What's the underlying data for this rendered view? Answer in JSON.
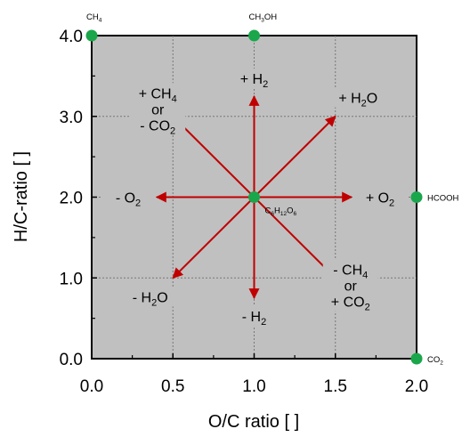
{
  "chart_data": {
    "type": "scatter",
    "xlabel": "O/C ratio  [   ]",
    "ylabel": "H/C-ratio  [   ]",
    "xlim": [
      0.0,
      2.0
    ],
    "ylim": [
      0.0,
      4.0
    ],
    "xticks": [
      "0.0",
      "0.5",
      "1.0",
      "1.5",
      "2.0"
    ],
    "yticks": [
      "0.0",
      "1.0",
      "2.0",
      "3.0",
      "4.0"
    ],
    "grid": true,
    "background": "#c0c0c0",
    "point_color": "#1aa64b",
    "arrow_color": "#c00000",
    "points": [
      {
        "label": "CH4",
        "x": 0.0,
        "y": 4.0
      },
      {
        "label": "CH3OH",
        "x": 1.0,
        "y": 4.0
      },
      {
        "label": "HCOOH",
        "x": 2.0,
        "y": 2.0
      },
      {
        "label": "CO2",
        "x": 2.0,
        "y": 0.0
      },
      {
        "label": "C6H12O6",
        "x": 1.0,
        "y": 2.0
      }
    ],
    "arrows": [
      {
        "label": [
          "+ H2"
        ],
        "from": [
          1.0,
          2.0
        ],
        "to": [
          1.0,
          3.25
        ]
      },
      {
        "label": [
          "- H2"
        ],
        "from": [
          1.0,
          2.0
        ],
        "to": [
          1.0,
          0.75
        ]
      },
      {
        "label": [
          "+ O2"
        ],
        "from": [
          1.0,
          2.0
        ],
        "to": [
          1.6,
          2.0
        ]
      },
      {
        "label": [
          "- O2"
        ],
        "from": [
          1.0,
          2.0
        ],
        "to": [
          0.4,
          2.0
        ]
      },
      {
        "label": [
          "+ H2O"
        ],
        "from": [
          1.0,
          2.0
        ],
        "to": [
          1.5,
          3.0
        ]
      },
      {
        "label": [
          "- H2O"
        ],
        "from": [
          1.0,
          2.0
        ],
        "to": [
          0.5,
          1.0
        ]
      },
      {
        "label": [
          "+ CH4",
          "or",
          "- CO2"
        ],
        "from": [
          1.0,
          2.0
        ],
        "to": [
          0.5,
          3.0
        ]
      },
      {
        "label": [
          "- CH4",
          "or",
          "+ CO2"
        ],
        "from": [
          1.0,
          2.0
        ],
        "to": [
          1.5,
          1.0
        ]
      }
    ]
  }
}
